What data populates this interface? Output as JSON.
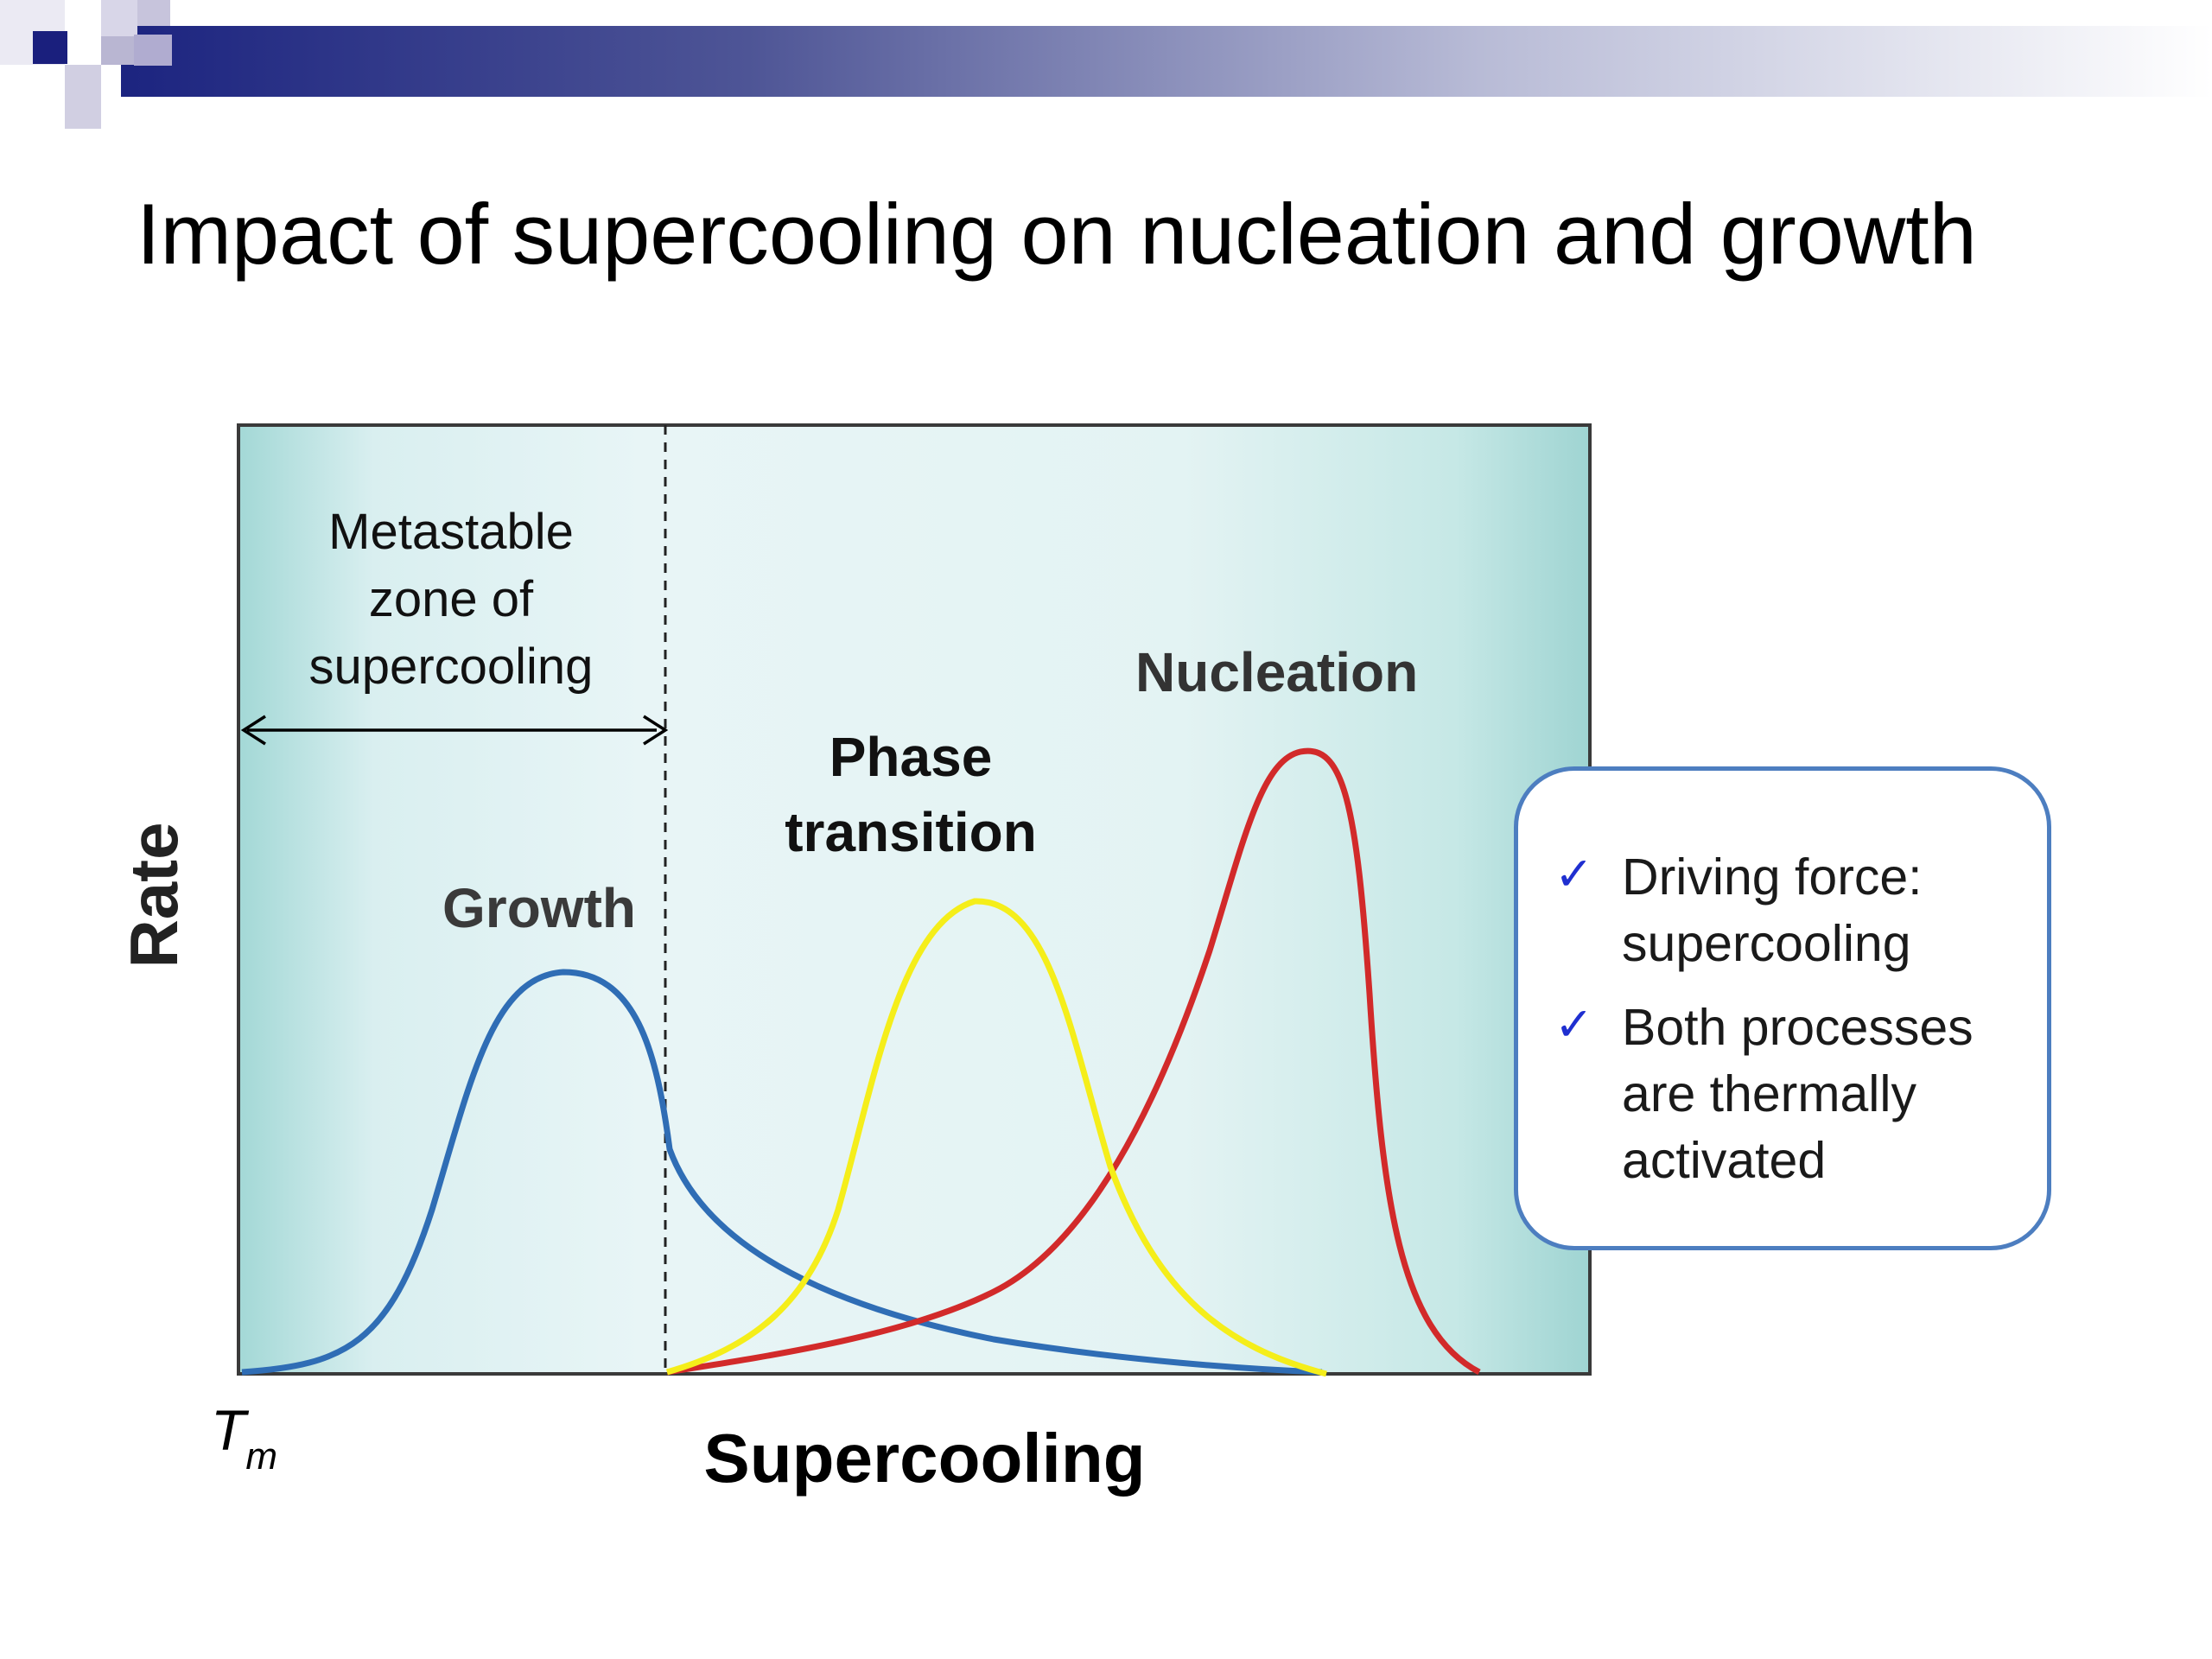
{
  "slide": {
    "title": "Impact of supercooling on nucleation and growth"
  },
  "diagram": {
    "y_axis_label": "Rate",
    "x_axis_label": "Supercooling",
    "origin_label_base": "T",
    "origin_label_sub": "m",
    "metastable_zone": [
      "Metastable",
      "zone of",
      "supercooling"
    ],
    "curves": [
      {
        "name": "growth",
        "label": [
          "Growth"
        ],
        "color": "#2f6db5"
      },
      {
        "name": "phase-transition",
        "label": [
          "Phase",
          "transition"
        ],
        "color": "#f5ee1a"
      },
      {
        "name": "nucleation",
        "label": [
          "Nucleation"
        ],
        "color": "#d22a2a"
      }
    ]
  },
  "callout": {
    "items": [
      {
        "icon": "check-icon",
        "text": "Driving force: supercooling"
      },
      {
        "icon": "check-icon",
        "text": "Both processes are thermally activated"
      }
    ]
  },
  "colors": {
    "header_bar": "#1c2480",
    "plot_bg_edge": "#9fd6d4",
    "plot_bg_center": "#e6f4f5",
    "callout_border": "#4d7ec0",
    "check": "#1f2fd0"
  }
}
